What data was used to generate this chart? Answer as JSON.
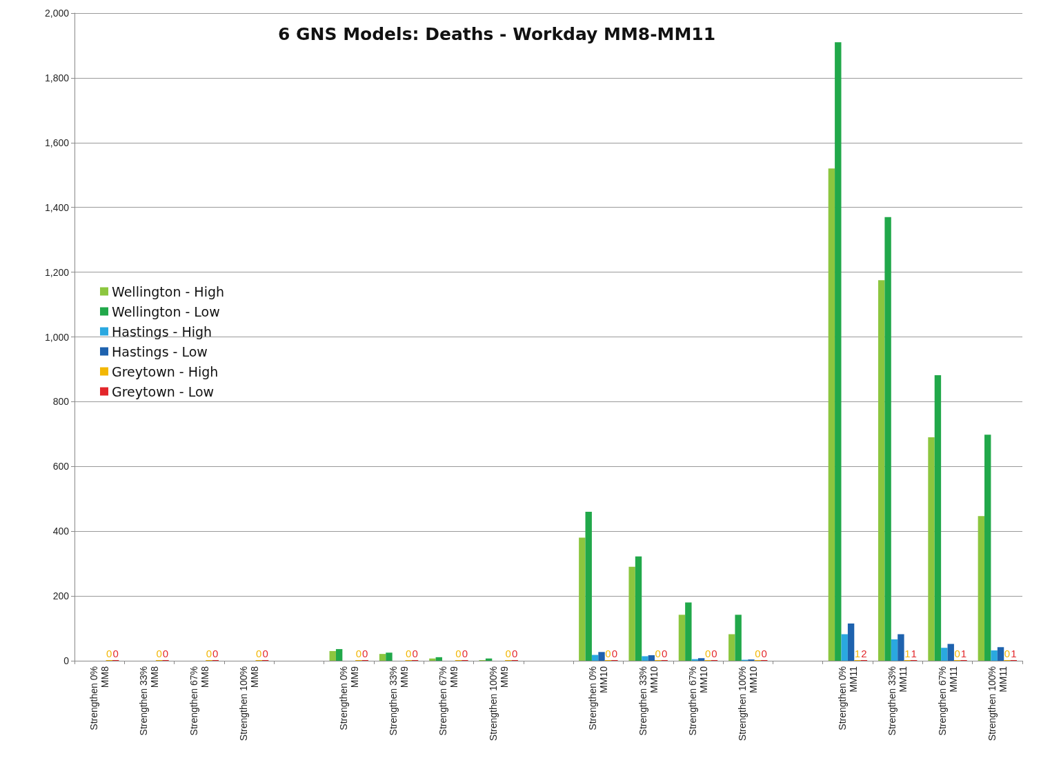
{
  "chart_data": {
    "type": "bar",
    "title": "6 GNS Models: Deaths - Workday MM8-MM11",
    "categories": [
      "Strengthen 0%\nMM8",
      "Strengthen 33%\nMM8",
      "Strengthen 67%\nMM8",
      "Strengthen 100%\nMM8",
      null,
      "Strengthen 0%\nMM9",
      "Strengthen 33%\nMM9",
      "Strengthen 67%\nMM9",
      "Strengthen 100%\nMM9",
      null,
      "Strengthen 0%\nMM10",
      "Strengthen 33%\nMM10",
      "Strengthen 67%\nMM10",
      "Strengthen 100%\nMM10",
      null,
      "Strengthen 0%\nMM11",
      "Strengthen 33%\nMM11",
      "Strengthen 67%\nMM11",
      "Strengthen 100%\nMM11"
    ],
    "series": [
      {
        "name": "Wellington - High",
        "color": "#8cc63f",
        "values": [
          0,
          0,
          0,
          0,
          null,
          30,
          21,
          7,
          2,
          null,
          380,
          290,
          142,
          82,
          null,
          1520,
          1175,
          690,
          447
        ]
      },
      {
        "name": "Wellington - Low",
        "color": "#21a84a",
        "values": [
          0,
          0,
          0,
          0,
          null,
          36,
          25,
          11,
          7,
          null,
          460,
          322,
          180,
          142,
          null,
          1910,
          1370,
          882,
          698
        ]
      },
      {
        "name": "Hastings - High",
        "color": "#2aa8e0",
        "values": [
          0,
          0,
          0,
          0,
          null,
          0,
          0,
          0,
          0,
          null,
          18,
          14,
          5,
          3,
          null,
          82,
          66,
          40,
          32
        ]
      },
      {
        "name": "Hastings - Low",
        "color": "#1e62ae",
        "values": [
          0,
          0,
          0,
          0,
          null,
          0,
          0,
          0,
          0,
          null,
          27,
          17,
          8,
          4,
          null,
          115,
          82,
          52,
          42
        ]
      },
      {
        "name": "Greytown - High",
        "color": "#f2b705",
        "values": [
          0,
          0,
          0,
          0,
          null,
          0,
          0,
          0,
          0,
          null,
          0,
          0,
          0,
          0,
          null,
          1,
          1,
          0,
          0
        ],
        "value_labels": [
          "0",
          "0",
          "0",
          "0",
          null,
          "0",
          "0",
          "0",
          "0",
          null,
          "0",
          "0",
          "0",
          "0",
          null,
          "1",
          "1",
          "0",
          "0"
        ]
      },
      {
        "name": "Greytown - Low",
        "color": "#e3262b",
        "values": [
          0,
          0,
          0,
          0,
          null,
          0,
          0,
          0,
          0,
          null,
          0,
          0,
          0,
          0,
          null,
          2,
          1,
          1,
          1
        ],
        "value_labels": [
          "0",
          "0",
          "0",
          "0",
          null,
          "0",
          "0",
          "0",
          "0",
          null,
          "0",
          "0",
          "0",
          "0",
          null,
          "2",
          "1",
          "1",
          "1"
        ]
      }
    ],
    "ylim": [
      0,
      2000
    ],
    "yticks": [
      {
        "value": 0,
        "label": "0"
      },
      {
        "value": 200,
        "label": "200"
      },
      {
        "value": 400,
        "label": "400"
      },
      {
        "value": 600,
        "label": "600"
      },
      {
        "value": 800,
        "label": "800"
      },
      {
        "value": 1000,
        "label": "1,000"
      },
      {
        "value": 1200,
        "label": "1,200"
      },
      {
        "value": 1400,
        "label": "1,400"
      },
      {
        "value": 1600,
        "label": "1,600"
      },
      {
        "value": 1800,
        "label": "1,800"
      },
      {
        "value": 2000,
        "label": "2,000"
      }
    ],
    "grid": "y",
    "legend": "left"
  }
}
